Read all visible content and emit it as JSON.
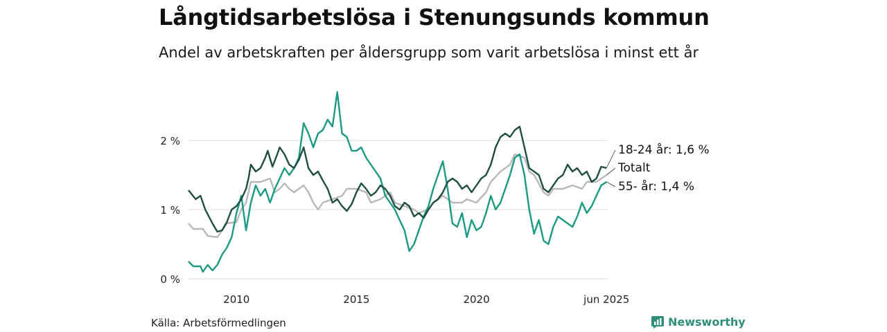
{
  "header": {
    "title": "Långtidsarbetslösa i Stenungsunds kommun",
    "subtitle": "Andel av arbetskraften per åldersgrupp som varit arbetslösa i minst ett år"
  },
  "footer": {
    "source": "Källa: Arbetsförmedlingen",
    "brand": "Newsworthy",
    "brand_icon": "bar-chart-icon"
  },
  "chart_data": {
    "type": "line",
    "xlim": [
      2008.0,
      2025.5
    ],
    "ylim": [
      0,
      2.8
    ],
    "y_ticks": [
      {
        "value": 0,
        "label": "0 %"
      },
      {
        "value": 1,
        "label": "1 %"
      },
      {
        "value": 2,
        "label": "2 %"
      }
    ],
    "x_ticks": [
      {
        "value": 2010,
        "label": "2010"
      },
      {
        "value": 2015,
        "label": "2015"
      },
      {
        "value": 2020,
        "label": "2020"
      },
      {
        "value": 2025.42,
        "label": "jun 2025"
      }
    ],
    "grid": true,
    "colors": {
      "18-24": "#1f4d42",
      "totalt": "#b8b8bc",
      "55": "#1a9983",
      "grid": "#dddddd"
    },
    "series": [
      {
        "key": "18-24",
        "end_label": "18-24 år: 1,6 %",
        "color": "#1f4d42",
        "points": [
          [
            2008.0,
            1.28
          ],
          [
            2008.3,
            1.15
          ],
          [
            2008.5,
            1.2
          ],
          [
            2008.7,
            1.0
          ],
          [
            2009.0,
            0.8
          ],
          [
            2009.2,
            0.68
          ],
          [
            2009.4,
            0.7
          ],
          [
            2009.6,
            0.82
          ],
          [
            2009.8,
            1.0
          ],
          [
            2010.0,
            1.05
          ],
          [
            2010.2,
            1.15
          ],
          [
            2010.4,
            1.3
          ],
          [
            2010.5,
            1.45
          ],
          [
            2010.6,
            1.65
          ],
          [
            2010.8,
            1.55
          ],
          [
            2011.0,
            1.6
          ],
          [
            2011.2,
            1.75
          ],
          [
            2011.3,
            1.85
          ],
          [
            2011.5,
            1.62
          ],
          [
            2011.7,
            1.8
          ],
          [
            2011.8,
            1.9
          ],
          [
            2012.0,
            1.8
          ],
          [
            2012.2,
            1.65
          ],
          [
            2012.4,
            1.6
          ],
          [
            2012.6,
            1.72
          ],
          [
            2012.8,
            1.9
          ],
          [
            2013.0,
            1.6
          ],
          [
            2013.2,
            1.5
          ],
          [
            2013.4,
            1.55
          ],
          [
            2013.6,
            1.42
          ],
          [
            2013.8,
            1.3
          ],
          [
            2014.0,
            1.1
          ],
          [
            2014.2,
            1.15
          ],
          [
            2014.4,
            1.05
          ],
          [
            2014.6,
            0.98
          ],
          [
            2014.8,
            1.08
          ],
          [
            2015.0,
            1.25
          ],
          [
            2015.2,
            1.38
          ],
          [
            2015.4,
            1.3
          ],
          [
            2015.6,
            1.2
          ],
          [
            2015.8,
            1.25
          ],
          [
            2016.0,
            1.35
          ],
          [
            2016.2,
            1.3
          ],
          [
            2016.4,
            1.2
          ],
          [
            2016.6,
            1.05
          ],
          [
            2016.8,
            1.0
          ],
          [
            2017.0,
            1.1
          ],
          [
            2017.2,
            1.05
          ],
          [
            2017.4,
            0.9
          ],
          [
            2017.6,
            0.95
          ],
          [
            2017.8,
            0.88
          ],
          [
            2018.0,
            1.0
          ],
          [
            2018.2,
            1.1
          ],
          [
            2018.4,
            1.15
          ],
          [
            2018.6,
            1.25
          ],
          [
            2018.8,
            1.4
          ],
          [
            2019.0,
            1.45
          ],
          [
            2019.2,
            1.4
          ],
          [
            2019.4,
            1.3
          ],
          [
            2019.6,
            1.35
          ],
          [
            2019.8,
            1.25
          ],
          [
            2020.0,
            1.35
          ],
          [
            2020.2,
            1.45
          ],
          [
            2020.4,
            1.5
          ],
          [
            2020.6,
            1.65
          ],
          [
            2020.8,
            1.9
          ],
          [
            2021.0,
            2.05
          ],
          [
            2021.2,
            2.1
          ],
          [
            2021.4,
            2.05
          ],
          [
            2021.6,
            2.15
          ],
          [
            2021.8,
            2.2
          ],
          [
            2022.0,
            1.9
          ],
          [
            2022.2,
            1.6
          ],
          [
            2022.4,
            1.55
          ],
          [
            2022.6,
            1.5
          ],
          [
            2022.8,
            1.3
          ],
          [
            2023.0,
            1.25
          ],
          [
            2023.2,
            1.35
          ],
          [
            2023.4,
            1.45
          ],
          [
            2023.6,
            1.5
          ],
          [
            2023.8,
            1.65
          ],
          [
            2024.0,
            1.55
          ],
          [
            2024.2,
            1.6
          ],
          [
            2024.4,
            1.5
          ],
          [
            2024.6,
            1.55
          ],
          [
            2024.8,
            1.4
          ],
          [
            2025.0,
            1.45
          ],
          [
            2025.2,
            1.62
          ],
          [
            2025.42,
            1.6
          ]
        ]
      },
      {
        "key": "totalt",
        "end_label": "Totalt",
        "color": "#b8b8bc",
        "points": [
          [
            2008.0,
            0.8
          ],
          [
            2008.2,
            0.72
          ],
          [
            2008.6,
            0.72
          ],
          [
            2008.8,
            0.62
          ],
          [
            2009.2,
            0.6
          ],
          [
            2009.4,
            0.7
          ],
          [
            2009.6,
            0.8
          ],
          [
            2010.0,
            0.82
          ],
          [
            2010.2,
            1.0
          ],
          [
            2010.4,
            1.1
          ],
          [
            2010.6,
            1.4
          ],
          [
            2011.0,
            1.4
          ],
          [
            2011.4,
            1.45
          ],
          [
            2011.6,
            1.25
          ],
          [
            2011.8,
            1.3
          ],
          [
            2012.0,
            1.38
          ],
          [
            2012.2,
            1.3
          ],
          [
            2012.4,
            1.25
          ],
          [
            2012.6,
            1.3
          ],
          [
            2012.8,
            1.35
          ],
          [
            2013.0,
            1.25
          ],
          [
            2013.2,
            1.1
          ],
          [
            2013.4,
            1.0
          ],
          [
            2013.6,
            1.1
          ],
          [
            2014.0,
            1.15
          ],
          [
            2014.4,
            1.2
          ],
          [
            2014.6,
            1.3
          ],
          [
            2015.0,
            1.3
          ],
          [
            2015.4,
            1.25
          ],
          [
            2015.6,
            1.1
          ],
          [
            2016.0,
            1.15
          ],
          [
            2016.4,
            1.25
          ],
          [
            2016.6,
            1.1
          ],
          [
            2017.0,
            1.05
          ],
          [
            2017.4,
            1.0
          ],
          [
            2017.6,
            0.95
          ],
          [
            2018.0,
            1.0
          ],
          [
            2018.2,
            1.1
          ],
          [
            2018.6,
            1.2
          ],
          [
            2019.0,
            1.1
          ],
          [
            2019.4,
            1.1
          ],
          [
            2019.6,
            1.15
          ],
          [
            2020.0,
            1.1
          ],
          [
            2020.4,
            1.25
          ],
          [
            2020.6,
            1.4
          ],
          [
            2021.0,
            1.55
          ],
          [
            2021.4,
            1.65
          ],
          [
            2021.6,
            1.8
          ],
          [
            2022.0,
            1.75
          ],
          [
            2022.2,
            1.55
          ],
          [
            2022.4,
            1.5
          ],
          [
            2022.8,
            1.25
          ],
          [
            2023.0,
            1.2
          ],
          [
            2023.2,
            1.3
          ],
          [
            2023.6,
            1.3
          ],
          [
            2024.0,
            1.35
          ],
          [
            2024.4,
            1.3
          ],
          [
            2024.6,
            1.4
          ],
          [
            2025.0,
            1.4
          ],
          [
            2025.42,
            1.5
          ]
        ]
      },
      {
        "key": "55",
        "end_label": "55- år: 1,4 %",
        "color": "#1a9983",
        "points": [
          [
            2008.0,
            0.25
          ],
          [
            2008.2,
            0.18
          ],
          [
            2008.5,
            0.18
          ],
          [
            2008.6,
            0.1
          ],
          [
            2008.8,
            0.2
          ],
          [
            2009.0,
            0.12
          ],
          [
            2009.2,
            0.2
          ],
          [
            2009.4,
            0.35
          ],
          [
            2009.6,
            0.45
          ],
          [
            2009.8,
            0.6
          ],
          [
            2010.0,
            0.95
          ],
          [
            2010.2,
            1.2
          ],
          [
            2010.3,
            0.95
          ],
          [
            2010.4,
            0.7
          ],
          [
            2010.6,
            1.1
          ],
          [
            2010.8,
            1.35
          ],
          [
            2011.0,
            1.2
          ],
          [
            2011.2,
            1.3
          ],
          [
            2011.4,
            1.1
          ],
          [
            2011.6,
            1.3
          ],
          [
            2011.8,
            1.45
          ],
          [
            2012.0,
            1.6
          ],
          [
            2012.2,
            1.5
          ],
          [
            2012.4,
            1.6
          ],
          [
            2012.6,
            1.75
          ],
          [
            2012.8,
            2.25
          ],
          [
            2013.0,
            2.1
          ],
          [
            2013.2,
            1.9
          ],
          [
            2013.4,
            2.1
          ],
          [
            2013.6,
            2.15
          ],
          [
            2013.8,
            2.3
          ],
          [
            2014.0,
            2.2
          ],
          [
            2014.2,
            2.7
          ],
          [
            2014.4,
            2.1
          ],
          [
            2014.6,
            2.05
          ],
          [
            2014.8,
            1.85
          ],
          [
            2015.0,
            1.85
          ],
          [
            2015.2,
            1.9
          ],
          [
            2015.4,
            1.75
          ],
          [
            2015.6,
            1.65
          ],
          [
            2015.8,
            1.55
          ],
          [
            2016.0,
            1.45
          ],
          [
            2016.2,
            1.2
          ],
          [
            2016.4,
            1.1
          ],
          [
            2016.6,
            1.0
          ],
          [
            2016.8,
            0.85
          ],
          [
            2017.0,
            0.7
          ],
          [
            2017.2,
            0.4
          ],
          [
            2017.4,
            0.5
          ],
          [
            2017.6,
            0.7
          ],
          [
            2017.8,
            0.9
          ],
          [
            2018.0,
            1.05
          ],
          [
            2018.2,
            1.3
          ],
          [
            2018.4,
            1.5
          ],
          [
            2018.6,
            1.7
          ],
          [
            2018.8,
            1.3
          ],
          [
            2019.0,
            0.8
          ],
          [
            2019.2,
            0.75
          ],
          [
            2019.4,
            0.95
          ],
          [
            2019.6,
            0.6
          ],
          [
            2019.8,
            0.85
          ],
          [
            2020.0,
            0.7
          ],
          [
            2020.2,
            0.75
          ],
          [
            2020.4,
            0.95
          ],
          [
            2020.6,
            1.2
          ],
          [
            2020.8,
            1.0
          ],
          [
            2021.0,
            1.1
          ],
          [
            2021.2,
            1.3
          ],
          [
            2021.4,
            1.5
          ],
          [
            2021.6,
            1.75
          ],
          [
            2021.8,
            1.8
          ],
          [
            2022.0,
            1.5
          ],
          [
            2022.2,
            1.0
          ],
          [
            2022.4,
            0.65
          ],
          [
            2022.6,
            0.85
          ],
          [
            2022.8,
            0.55
          ],
          [
            2023.0,
            0.5
          ],
          [
            2023.2,
            0.75
          ],
          [
            2023.4,
            0.9
          ],
          [
            2023.6,
            0.85
          ],
          [
            2023.8,
            0.8
          ],
          [
            2024.0,
            0.75
          ],
          [
            2024.2,
            0.9
          ],
          [
            2024.4,
            1.1
          ],
          [
            2024.6,
            0.95
          ],
          [
            2024.8,
            1.05
          ],
          [
            2025.0,
            1.2
          ],
          [
            2025.2,
            1.35
          ],
          [
            2025.42,
            1.4
          ]
        ]
      }
    ]
  }
}
